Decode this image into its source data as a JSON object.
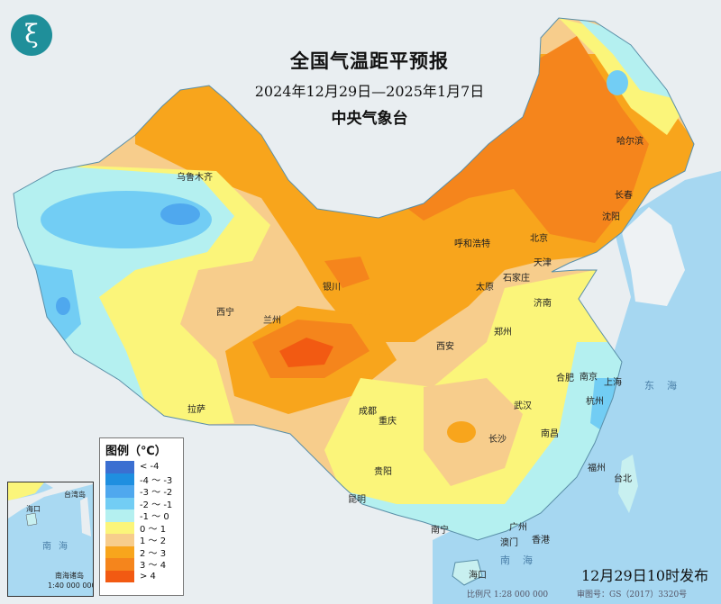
{
  "header": {
    "title": "全国气温距平预报",
    "date_range": "2024年12月29日—2025年1月7日",
    "agency": "中央气象台",
    "logo_icon": "cma-logo-icon"
  },
  "legend": {
    "title": "图例（℃）",
    "items": [
      {
        "label": "< -4",
        "color": "#3b6fd1"
      },
      {
        "label": "-4 ～ -3",
        "color": "#1f8fe0"
      },
      {
        "label": "-3 ～ -2",
        "color": "#4fa8ee"
      },
      {
        "label": "-2 ～ -1",
        "color": "#72cdf4"
      },
      {
        "label": "-1 ～ 0",
        "color": "#b4f0f0"
      },
      {
        "label": "0 ～ 1",
        "color": "#fbf57a"
      },
      {
        "label": "1 ～ 2",
        "color": "#f7cd8c"
      },
      {
        "label": "2 ～ 3",
        "color": "#f8a51c"
      },
      {
        "label": "3 ～ 4",
        "color": "#f5851c"
      },
      {
        "label": "> 4",
        "color": "#f25a12"
      }
    ]
  },
  "cities": [
    "乌鲁木齐",
    "拉萨",
    "西宁",
    "兰州",
    "银川",
    "呼和浩特",
    "北京",
    "天津",
    "石家庄",
    "太原",
    "济南",
    "郑州",
    "西安",
    "成都",
    "重庆",
    "贵阳",
    "昆明",
    "南宁",
    "广州",
    "香港",
    "澳门",
    "海口",
    "长沙",
    "武汉",
    "南昌",
    "合肥",
    "南京",
    "上海",
    "杭州",
    "福州",
    "台北",
    "哈尔滨",
    "长春",
    "沈阳"
  ],
  "seas": [
    "东海",
    "南海"
  ],
  "inset": {
    "sea": "南海",
    "title": "南海诸岛",
    "scale": "1:40 000 000",
    "labels": [
      "海口",
      "台湾岛"
    ]
  },
  "footer": {
    "issued": "12月29日10时发布",
    "scale": "比例尺 1:28 000 000",
    "approval": "审图号：GS（2017）3320号"
  }
}
